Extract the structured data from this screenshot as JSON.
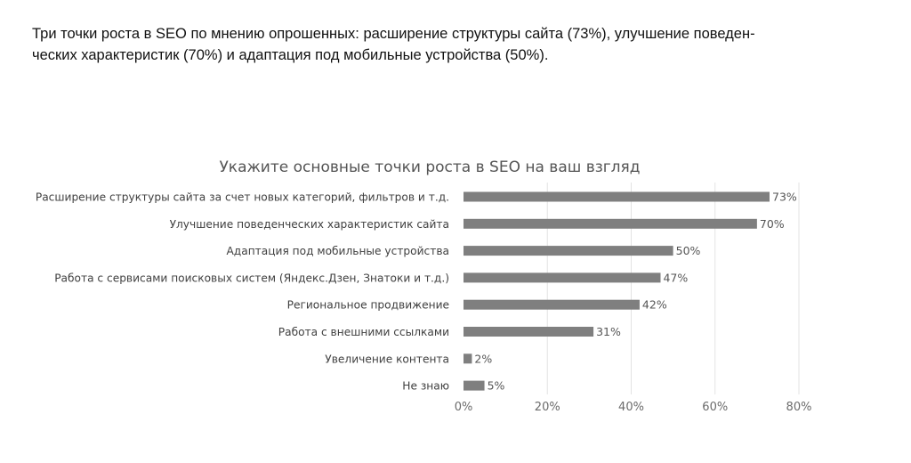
{
  "caption": [
    "Три точки роста в SEO по мнению опрошенных: расширение структуры сайта (73%), улучшение поведен-",
    "ческих характеристик (70%) и адаптация под мобильные устройства (50%)."
  ],
  "chart_data": {
    "type": "bar",
    "orientation": "horizontal",
    "title": "Укажите основные точки роста в SEO на ваш взгляд",
    "categories": [
      "Расширение структуры сайта за счет новых категорий, фильтров и т.д.",
      "Улучшение поведенческих характеристик сайта",
      "Адаптация под мобильные устройства",
      "Работа с сервисами поисковых систем (Яндекс.Дзен, Знатоки и т.д.)",
      "Региональное продвижение",
      "Работа с внешними ссылками",
      "Увеличение контента",
      "Не знаю"
    ],
    "values": [
      73,
      70,
      50,
      47,
      42,
      31,
      2,
      5
    ],
    "value_labels": [
      "73%",
      "70%",
      "50%",
      "47%",
      "42%",
      "31%",
      "2%",
      "5%"
    ],
    "xlim": [
      0,
      80
    ],
    "xticks": [
      0,
      20,
      40,
      60,
      80
    ],
    "xtick_labels": [
      "0%",
      "20%",
      "40%",
      "60%",
      "80%"
    ],
    "grid": "vertical",
    "bar_color": "#7f7f7f"
  }
}
